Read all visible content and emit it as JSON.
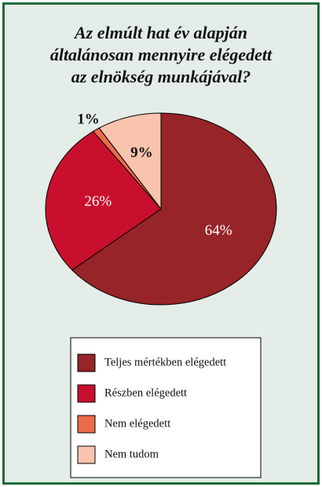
{
  "chart_data": {
    "type": "pie",
    "title": "Az elmúlt hat év alapján\náltalánosan mennyire elégedett\naz elnökség munkájával?",
    "categories": [
      "Teljes mértékben elégedett",
      "Részben elégedett",
      "Nem elégedett",
      "Nem tudom"
    ],
    "values": [
      64,
      26,
      1,
      9
    ],
    "value_labels": [
      "64%",
      "26%",
      "1%",
      "9%"
    ],
    "colors": [
      "#962428",
      "#c8102e",
      "#ea6a4a",
      "#f8c4ae"
    ],
    "legend": "bottom"
  }
}
